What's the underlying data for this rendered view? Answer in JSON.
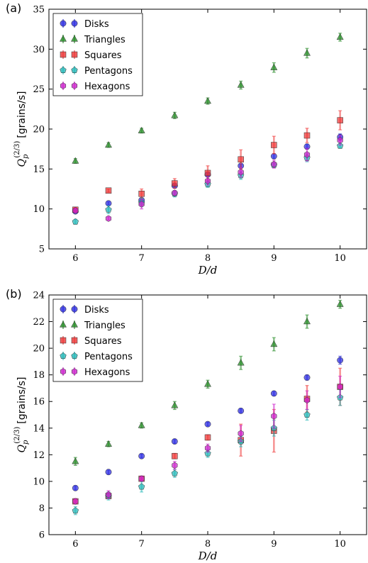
{
  "chart_data": [
    {
      "type": "scatter",
      "panel_label": "(a)",
      "xlabel": "D/d",
      "ylabel_math": "Q_p^{(2/3)}",
      "ylabel_unit": "[grains/s]",
      "xlim": [
        5.6,
        10.4
      ],
      "ylim": [
        5,
        35
      ],
      "xticks": [
        6,
        7,
        8,
        9,
        10
      ],
      "yticks": [
        5,
        10,
        15,
        20,
        25,
        30,
        35
      ],
      "grid": false,
      "legend_position": "top-left",
      "x": [
        6,
        6.5,
        7,
        7.5,
        8,
        8.5,
        9,
        9.5,
        10
      ],
      "series": [
        {
          "name": "Disks",
          "marker": "circle",
          "color": "#2929e0",
          "values": [
            9.7,
            10.7,
            11.1,
            12.9,
            14.3,
            15.4,
            16.6,
            17.8,
            19.0
          ],
          "errors": [
            0.2,
            0.2,
            0.2,
            0.2,
            0.2,
            0.2,
            0.3,
            0.3,
            0.4
          ]
        },
        {
          "name": "Triangles",
          "marker": "triangle",
          "color": "#228b22",
          "values": [
            16.0,
            18.0,
            19.8,
            21.7,
            23.5,
            25.5,
            27.7,
            29.5,
            31.5
          ],
          "errors": [
            0.3,
            0.3,
            0.3,
            0.4,
            0.4,
            0.5,
            0.6,
            0.6,
            0.5
          ]
        },
        {
          "name": "Squares",
          "marker": "square",
          "color": "#ee3333",
          "values": [
            9.9,
            12.3,
            11.9,
            13.2,
            14.5,
            16.2,
            18.0,
            19.2,
            21.1
          ],
          "errors": [
            0.3,
            0.2,
            0.6,
            0.6,
            0.9,
            1.2,
            1.1,
            0.9,
            1.2
          ]
        },
        {
          "name": "Pentagons",
          "marker": "pentagon",
          "color": "#22b8b8",
          "values": [
            8.4,
            9.9,
            10.8,
            11.9,
            13.1,
            14.2,
            15.5,
            16.4,
            17.9
          ],
          "errors": [
            0.3,
            0.5,
            0.5,
            0.4,
            0.4,
            0.5,
            0.3,
            0.5,
            0.3
          ]
        },
        {
          "name": "Hexagons",
          "marker": "hexagon",
          "color": "#cc22cc",
          "values": [
            9.8,
            8.8,
            10.6,
            12.0,
            13.5,
            14.6,
            15.6,
            16.8,
            18.6
          ],
          "errors": [
            0.3,
            0.2,
            0.6,
            0.3,
            0.5,
            0.6,
            0.5,
            0.8,
            0.6
          ]
        }
      ]
    },
    {
      "type": "scatter",
      "panel_label": "(b)",
      "xlabel": "D/d",
      "ylabel_math": "Q_p^{(2/3)}",
      "ylabel_unit": "[grains/s]",
      "xlim": [
        5.6,
        10.4
      ],
      "ylim": [
        6,
        24
      ],
      "xticks": [
        6,
        7,
        8,
        9,
        10
      ],
      "yticks": [
        6,
        8,
        10,
        12,
        14,
        16,
        18,
        20,
        22,
        24
      ],
      "grid": false,
      "legend_position": "top-left",
      "x": [
        6,
        6.5,
        7,
        7.5,
        8,
        8.5,
        9,
        9.5,
        10
      ],
      "series": [
        {
          "name": "Disks",
          "marker": "circle",
          "color": "#2929e0",
          "values": [
            9.5,
            10.7,
            11.9,
            13.0,
            14.3,
            15.3,
            16.6,
            17.8,
            19.1
          ],
          "errors": [
            0.15,
            0.15,
            0.15,
            0.15,
            0.15,
            0.15,
            0.15,
            0.2,
            0.3
          ]
        },
        {
          "name": "Triangles",
          "marker": "triangle",
          "color": "#228b22",
          "values": [
            11.5,
            12.8,
            14.2,
            15.7,
            17.3,
            18.9,
            20.3,
            22.0,
            23.3
          ],
          "errors": [
            0.3,
            0.2,
            0.2,
            0.3,
            0.3,
            0.5,
            0.5,
            0.5,
            0.3
          ]
        },
        {
          "name": "Squares",
          "marker": "square",
          "color": "#ee3333",
          "values": [
            8.5,
            8.9,
            10.2,
            11.9,
            13.3,
            13.1,
            13.8,
            16.2,
            17.1
          ],
          "errors": [
            0.2,
            0.2,
            0.2,
            0.2,
            0.2,
            1.2,
            1.6,
            1.0,
            1.4
          ]
        },
        {
          "name": "Pentagons",
          "marker": "pentagon",
          "color": "#22b8b8",
          "values": [
            7.8,
            8.9,
            9.6,
            10.6,
            12.1,
            13.0,
            14.0,
            15.0,
            16.3
          ],
          "errors": [
            0.3,
            0.3,
            0.4,
            0.3,
            0.3,
            0.4,
            0.6,
            0.4,
            0.6
          ]
        },
        {
          "name": "Hexagons",
          "marker": "hexagon",
          "color": "#cc22cc",
          "values": [
            8.5,
            9.0,
            10.2,
            11.2,
            12.5,
            13.6,
            14.9,
            16.1,
            17.1
          ],
          "errors": [
            0.2,
            0.3,
            0.2,
            0.3,
            0.3,
            0.6,
            0.9,
            0.7,
            0.8
          ]
        }
      ]
    }
  ]
}
